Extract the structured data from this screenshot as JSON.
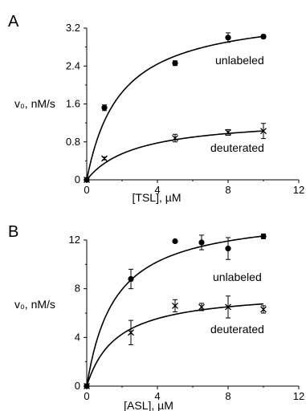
{
  "chart_data": [
    {
      "type": "scatter",
      "panel_label": "A",
      "xlabel": "[TSL], µM",
      "ylabel": "v₀, nM/s",
      "xlim": [
        0,
        12
      ],
      "ylim": [
        0,
        3.2
      ],
      "x_ticks": [
        "0",
        "4",
        "8",
        "12"
      ],
      "y_ticks": [
        "0",
        "0.8",
        "1.6",
        "2.4",
        "3.2"
      ],
      "series": [
        {
          "name": "unlabeled",
          "marker": "circle",
          "x": [
            0,
            1,
            5,
            8,
            10
          ],
          "y": [
            0,
            1.52,
            2.46,
            3.0,
            3.02
          ],
          "err": [
            0,
            0.06,
            0.05,
            0.1,
            0.04
          ],
          "fit": {
            "vmax": 3.6,
            "km": 1.9
          }
        },
        {
          "name": "deuterated",
          "marker": "x",
          "x": [
            0,
            1,
            5,
            8,
            10
          ],
          "y": [
            0,
            0.45,
            0.88,
            1.0,
            1.03
          ],
          "err": [
            0,
            0.03,
            0.08,
            0.06,
            0.16
          ],
          "fit": {
            "vmax": 1.32,
            "km": 2.8
          }
        }
      ]
    },
    {
      "type": "scatter",
      "panel_label": "B",
      "xlabel": "[ASL], µM",
      "ylabel": "v₀, nM/s",
      "xlim": [
        0,
        12
      ],
      "ylim": [
        0,
        12
      ],
      "x_ticks": [
        "0",
        "4",
        "8",
        "12"
      ],
      "y_ticks": [
        "0",
        "4",
        "8",
        "12"
      ],
      "series": [
        {
          "name": "unlabeled",
          "marker": "circle",
          "x": [
            0,
            2.5,
            5,
            6.5,
            8,
            10
          ],
          "y": [
            0,
            8.8,
            11.9,
            11.8,
            11.3,
            12.3
          ],
          "err": [
            0,
            0.8,
            0,
            0.6,
            0.9,
            0.2
          ],
          "fit": {
            "vmax": 14.3,
            "km": 1.6
          }
        },
        {
          "name": "deuterated",
          "marker": "x",
          "x": [
            0,
            2.5,
            5,
            6.5,
            8,
            10
          ],
          "y": [
            0,
            4.4,
            6.6,
            6.5,
            6.5,
            6.3
          ],
          "err": [
            0,
            1.0,
            0.5,
            0.3,
            0.9,
            0.3
          ],
          "fit": {
            "vmax": 7.9,
            "km": 1.7
          }
        }
      ]
    }
  ]
}
